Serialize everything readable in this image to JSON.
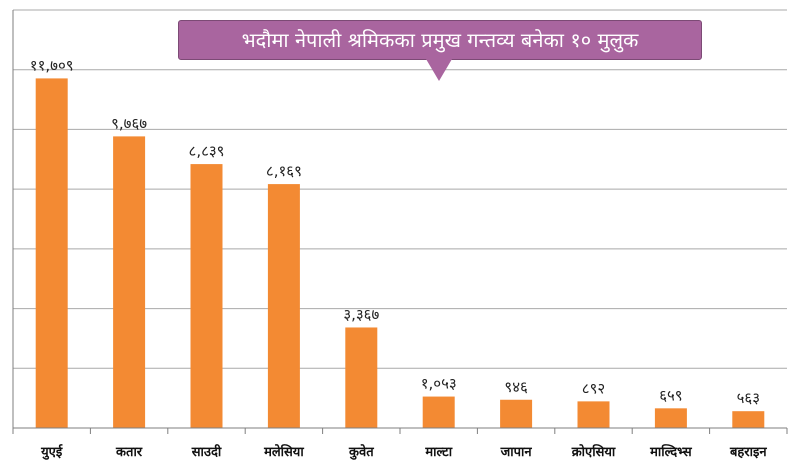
{
  "chart_data": {
    "type": "bar",
    "title": "भदौमा नेपाली श्रमिकका प्रमुख गन्तव्य बनेका १० मुलुक",
    "categories": [
      "युएई",
      "कतार",
      "साउदी",
      "मलेसिया",
      "कुवेत",
      "माल्टा",
      "जापान",
      "क्रोएसिया",
      "माल्दिभ्स",
      "बहराइन"
    ],
    "values": [
      11709,
      9767,
      8839,
      8169,
      3367,
      1053,
      946,
      892,
      659,
      563
    ],
    "value_labels": [
      "११,७०९",
      "९,७६७",
      "८,८३९",
      "८,१६९",
      "३,३६७",
      "१,०५३",
      "९४६",
      "८९२",
      "६५९",
      "५६३"
    ],
    "xlabel": "",
    "ylabel": "",
    "ylim": [
      0,
      14000
    ],
    "grid": true,
    "colors": {
      "bar": "#f38a33",
      "grid": "#a9a9a9",
      "title_bg": "#a9659f",
      "title_text": "#ffffff"
    }
  }
}
